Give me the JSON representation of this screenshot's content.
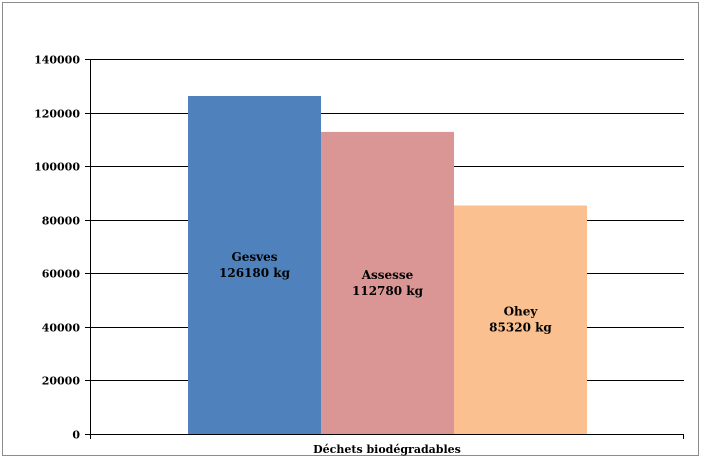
{
  "chart_data": {
    "type": "bar",
    "categories": [
      "Déchets biodégradables"
    ],
    "series": [
      {
        "name": "Gesves",
        "values": [
          126180
        ],
        "label": "126180 kg",
        "color": "#4f81bd"
      },
      {
        "name": "Assesse",
        "values": [
          112780
        ],
        "label": "112780 kg",
        "color": "#d99694"
      },
      {
        "name": "Ohey",
        "values": [
          85320
        ],
        "label": "85320 kg",
        "color": "#fac090"
      }
    ],
    "ylim": [
      0,
      140000
    ],
    "yticks": [
      0,
      20000,
      40000,
      60000,
      80000,
      100000,
      120000,
      140000
    ],
    "title": "",
    "xlabel": "",
    "ylabel": "",
    "grid": true,
    "legend": "none"
  }
}
